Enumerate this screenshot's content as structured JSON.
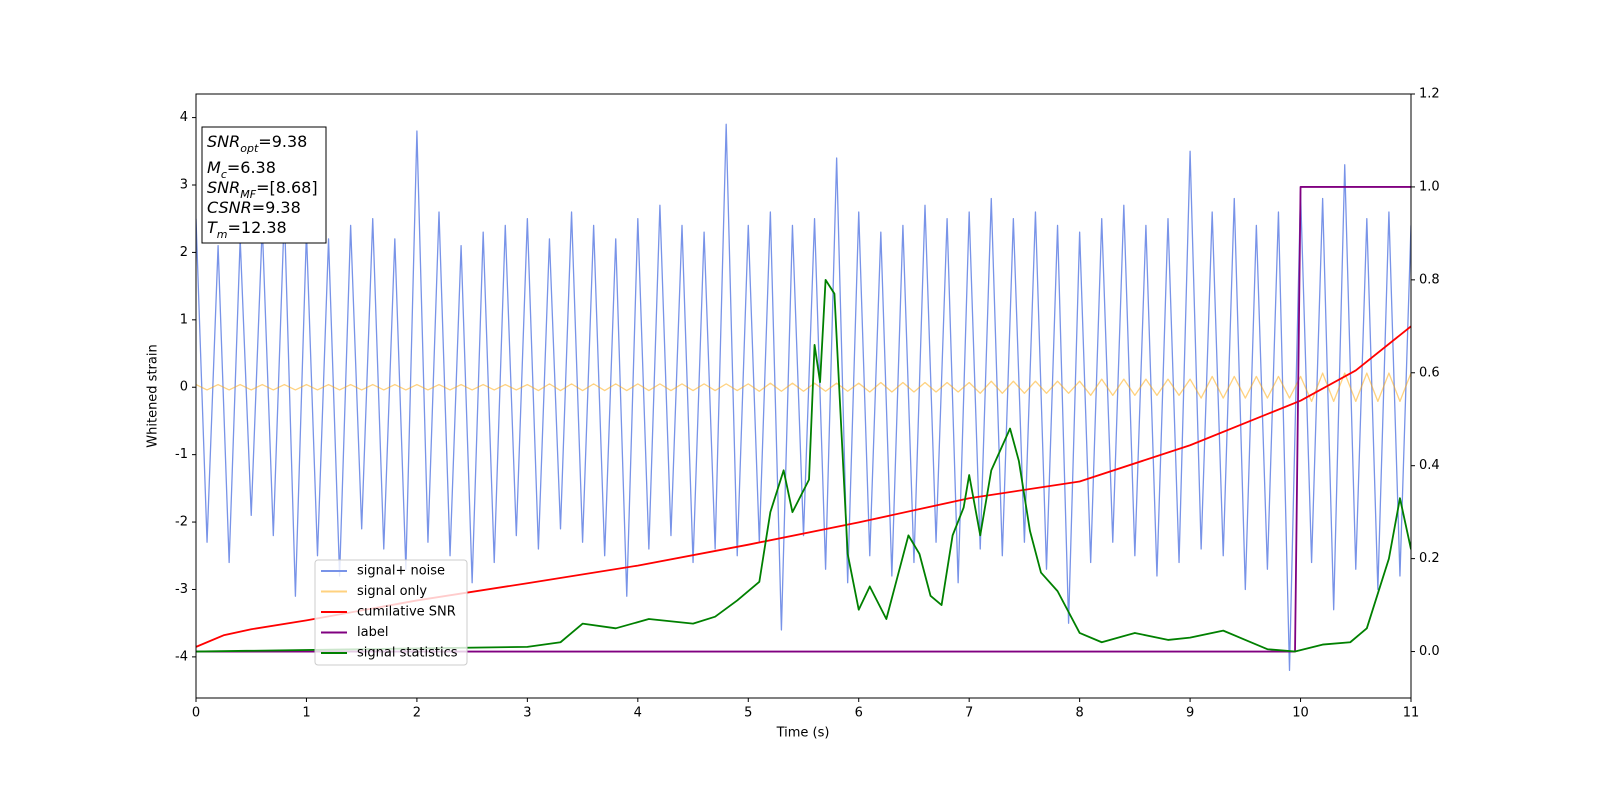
{
  "chart_data": {
    "type": "line",
    "xlabel": "Time (s)",
    "ylabel": "Whitened strain",
    "xlim": [
      0,
      11
    ],
    "xticks": [
      0,
      1,
      2,
      3,
      4,
      5,
      6,
      7,
      8,
      9,
      10,
      11
    ],
    "ylim": [
      -4.61,
      4.35
    ],
    "yticks": [
      -4,
      -3,
      -2,
      -1,
      0,
      1,
      2,
      3,
      4
    ],
    "y2lim": [
      -0.1,
      1.2
    ],
    "y2ticks": [
      {
        "value": 0,
        "label": "0.0"
      },
      {
        "value": 0.2,
        "label": "0.2"
      },
      {
        "value": 0.4,
        "label": "0.4"
      },
      {
        "value": 0.6,
        "label": "0.6"
      },
      {
        "value": 0.8,
        "label": "0.8"
      },
      {
        "value": 1,
        "label": "1.0"
      },
      {
        "value": 1.2,
        "label": "1.2"
      }
    ],
    "legend": "lower left",
    "x": [
      0,
      0.1,
      0.2,
      0.3,
      0.4,
      0.5,
      0.6,
      0.7,
      0.8,
      0.9,
      1,
      1.1,
      1.2,
      1.3,
      1.4,
      1.5,
      1.6,
      1.7,
      1.8,
      1.9,
      2,
      2.1,
      2.2,
      2.3,
      2.4,
      2.5,
      2.6,
      2.7,
      2.8,
      2.9,
      3,
      3.1,
      3.2,
      3.3,
      3.4,
      3.5,
      3.6,
      3.7,
      3.8,
      3.9,
      4,
      4.1,
      4.2,
      4.3,
      4.4,
      4.5,
      4.6,
      4.7,
      4.8,
      4.9,
      5,
      5.1,
      5.2,
      5.3,
      5.4,
      5.5,
      5.6,
      5.7,
      5.8,
      5.9,
      6,
      6.1,
      6.2,
      6.3,
      6.4,
      6.5,
      6.6,
      6.7,
      6.8,
      6.9,
      7,
      7.1,
      7.2,
      7.3,
      7.4,
      7.5,
      7.6,
      7.7,
      7.8,
      7.9,
      8,
      8.1,
      8.2,
      8.3,
      8.4,
      8.5,
      8.6,
      8.7,
      8.8,
      8.9,
      9,
      9.1,
      9.2,
      9.3,
      9.4,
      9.5,
      9.6,
      9.7,
      9.8,
      9.9,
      10,
      10.1,
      10.2,
      10.3,
      10.4,
      10.5,
      10.6,
      10.7,
      10.8,
      10.9,
      11
    ],
    "series": [
      {
        "name": "signal+ noise",
        "color": "#7893e8",
        "opacity": 1,
        "values": [
          2.5,
          -2.3,
          2.1,
          -2.6,
          2.2,
          -1.9,
          2.4,
          -2.2,
          2.6,
          -3.1,
          2.3,
          -2.5,
          2.2,
          -2.8,
          2.4,
          -2.1,
          2.5,
          -2.4,
          2.2,
          -2.7,
          3.8,
          -2.3,
          2.6,
          -2.5,
          2.1,
          -2.9,
          2.3,
          -2.6,
          2.4,
          -2.2,
          2.5,
          -2.4,
          2.2,
          -2.1,
          2.6,
          -2.3,
          2.4,
          -2.5,
          2.2,
          -3.1,
          2.5,
          -2.4,
          2.7,
          -2.2,
          2.4,
          -2.6,
          2.3,
          -2.4,
          3.9,
          -2.5,
          2.4,
          -2.3,
          2.6,
          -3.6,
          2.4,
          -2.2,
          2.5,
          -2.7,
          3.4,
          -2.9,
          2.6,
          -2.5,
          2.3,
          -2.8,
          2.4,
          -2.6,
          2.7,
          -2.3,
          2.5,
          -2.9,
          2.6,
          -2.4,
          2.8,
          -2.5,
          2.5,
          -2.3,
          2.6,
          -2.7,
          2.4,
          -3.5,
          2.3,
          -2.6,
          2.5,
          -2.3,
          2.7,
          -2.5,
          2.4,
          -2.8,
          2.5,
          -2.6,
          3.5,
          -2.4,
          2.6,
          -2.5,
          2.8,
          -3.0,
          2.4,
          -2.7,
          2.6,
          -4.2,
          2.9,
          -2.6,
          2.8,
          -3.3,
          3.3,
          -2.7,
          2.5,
          -3.0,
          2.6,
          -2.8,
          2.4
        ]
      },
      {
        "name": "signal only",
        "color": "#ffa500",
        "opacity": 0.5,
        "values": [
          0.04,
          -0.04,
          0.04,
          -0.04,
          0.04,
          -0.04,
          0.04,
          -0.04,
          0.04,
          -0.04,
          0.04,
          -0.04,
          0.04,
          -0.04,
          0.04,
          -0.04,
          0.04,
          -0.04,
          0.04,
          -0.04,
          0.04,
          -0.04,
          0.04,
          -0.04,
          0.04,
          -0.04,
          0.04,
          -0.04,
          0.04,
          -0.04,
          0.04,
          -0.05,
          0.05,
          -0.05,
          0.05,
          -0.05,
          0.05,
          -0.05,
          0.05,
          -0.05,
          0.05,
          -0.05,
          0.05,
          -0.05,
          0.05,
          -0.05,
          0.05,
          -0.05,
          0.05,
          -0.05,
          0.05,
          -0.06,
          0.06,
          -0.06,
          0.06,
          -0.06,
          0.06,
          -0.06,
          0.06,
          -0.06,
          0.06,
          -0.07,
          0.07,
          -0.07,
          0.07,
          -0.07,
          0.07,
          -0.07,
          0.07,
          -0.07,
          0.07,
          -0.09,
          0.09,
          -0.09,
          0.09,
          -0.09,
          0.09,
          -0.09,
          0.09,
          -0.09,
          0.09,
          -0.12,
          0.12,
          -0.12,
          0.12,
          -0.12,
          0.12,
          -0.12,
          0.12,
          -0.12,
          0.12,
          -0.16,
          0.16,
          -0.16,
          0.16,
          -0.16,
          0.16,
          -0.16,
          0.16,
          -0.16,
          0.16,
          -0.21,
          0.21,
          -0.21,
          0.21,
          -0.21,
          0.21,
          -0.21,
          0.21,
          -0.21,
          0.21
        ]
      },
      {
        "name": "cumilative SNR",
        "color": "#ff0000",
        "opacity": 1,
        "axis": "y2",
        "x": [
          0,
          0.25,
          0.5,
          1,
          2,
          3,
          4,
          5,
          6,
          7,
          8,
          9,
          10,
          10.5,
          11
        ],
        "values": [
          0.01,
          0.035,
          0.048,
          0.067,
          0.11,
          0.147,
          0.185,
          0.23,
          0.278,
          0.33,
          0.366,
          0.444,
          0.54,
          0.605,
          0.7
        ]
      },
      {
        "name": "label",
        "color": "#800080",
        "opacity": 1,
        "axis": "y2",
        "x": [
          0,
          9.95,
          10,
          11
        ],
        "values": [
          0,
          0,
          1,
          1
        ]
      },
      {
        "name": "signal statistics",
        "color": "#008000",
        "opacity": 1,
        "axis": "y2",
        "x": [
          0,
          3,
          3.3,
          3.5,
          3.8,
          4.1,
          4.5,
          4.7,
          4.9,
          5.1,
          5.2,
          5.32,
          5.4,
          5.55,
          5.6,
          5.65,
          5.7,
          5.78,
          5.9,
          6,
          6.1,
          6.25,
          6.35,
          6.45,
          6.55,
          6.65,
          6.75,
          6.85,
          6.95,
          7,
          7.1,
          7.2,
          7.37,
          7.45,
          7.55,
          7.65,
          7.8,
          8,
          8.2,
          8.5,
          8.8,
          9,
          9.3,
          9.5,
          9.7,
          9.95,
          10.2,
          10.45,
          10.6,
          10.8,
          10.9,
          11
        ],
        "values": [
          0,
          0.01,
          0.02,
          0.06,
          0.05,
          0.07,
          0.06,
          0.075,
          0.11,
          0.15,
          0.3,
          0.39,
          0.3,
          0.37,
          0.66,
          0.58,
          0.8,
          0.77,
          0.21,
          0.09,
          0.14,
          0.07,
          0.16,
          0.25,
          0.21,
          0.12,
          0.1,
          0.25,
          0.31,
          0.38,
          0.25,
          0.39,
          0.48,
          0.41,
          0.26,
          0.17,
          0.13,
          0.04,
          0.02,
          0.04,
          0.025,
          0.03,
          0.045,
          0.025,
          0.005,
          0,
          0.015,
          0.02,
          0.05,
          0.2,
          0.33,
          0.22
        ]
      }
    ],
    "annotation": [
      {
        "symbol": "SNR",
        "subscript": "opt",
        "text": "=9.38"
      },
      {
        "symbol": "M",
        "subscript": "c",
        "text": "=6.38"
      },
      {
        "symbol": "SNR",
        "subscript": "MF",
        "text": "=[8.68]"
      },
      {
        "symbol": "CSNR",
        "text": "=9.38"
      },
      {
        "symbol": "T",
        "subscript": "m",
        "text": "=12.38"
      }
    ]
  }
}
